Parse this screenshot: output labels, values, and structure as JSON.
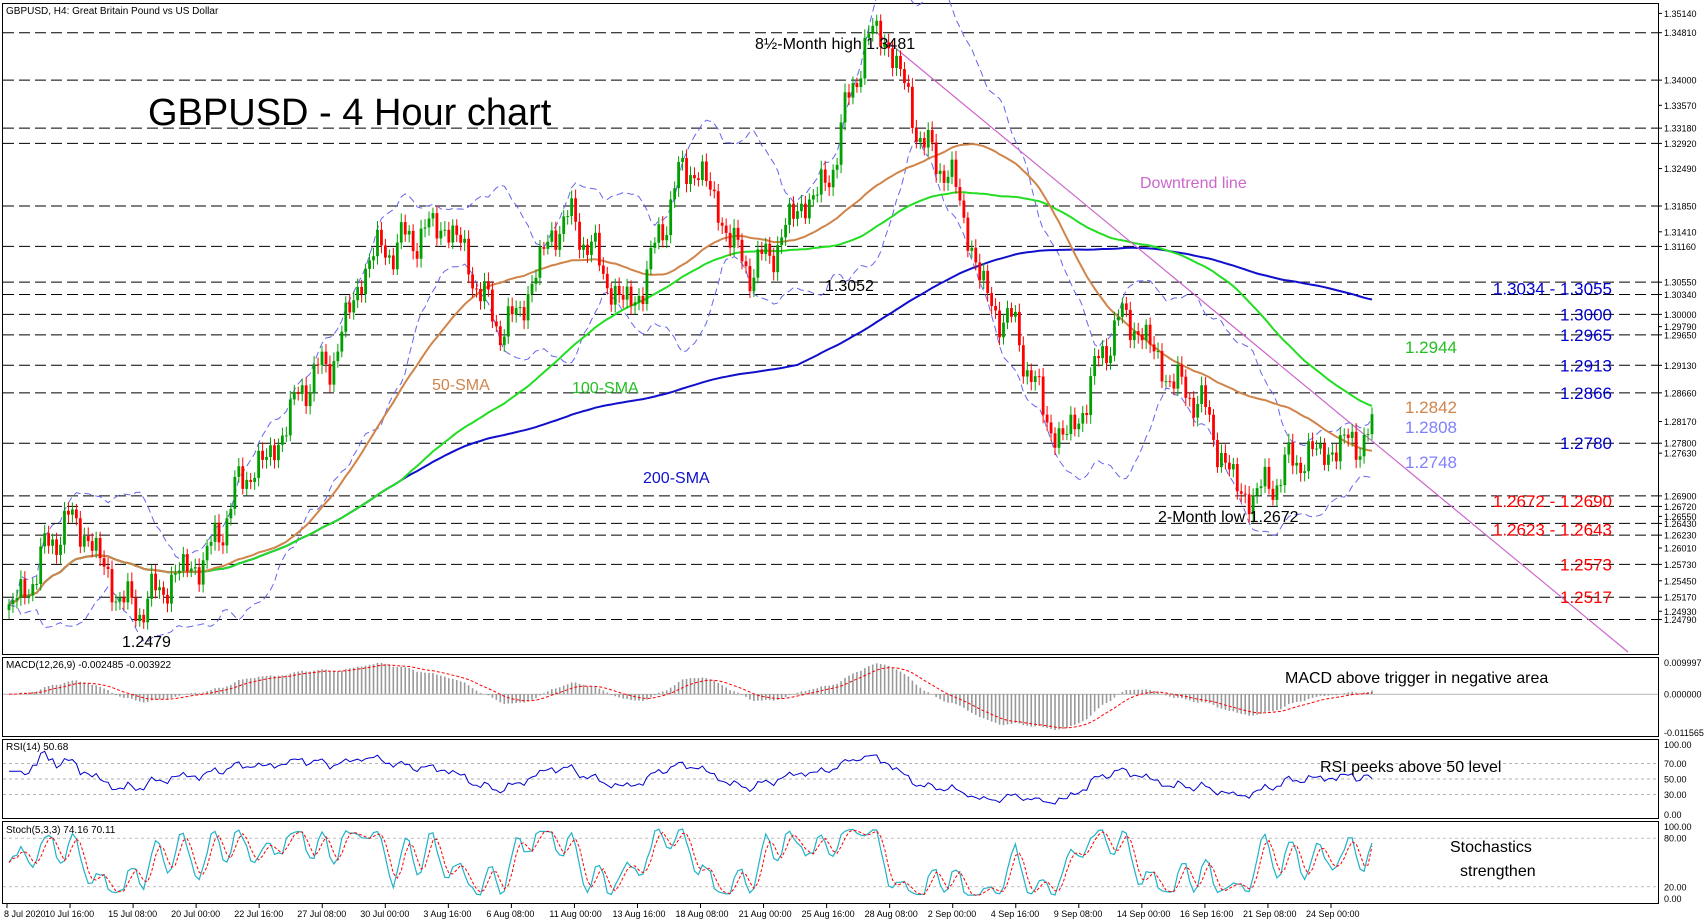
{
  "chart_data": [
    {
      "type": "candlestick",
      "header": "GBPUSD, H4:  Great Britain Pound vs US Dollar",
      "title": "GBPUSD - 4 Hour chart",
      "ylim": [
        1.242,
        1.353
      ],
      "y_ticks": [
        "1.35140",
        "1.34810",
        "1.34000",
        "1.33570",
        "1.33180",
        "1.32920",
        "1.32490",
        "1.31850",
        "1.31410",
        "1.31160",
        "1.30550",
        "1.30340",
        "1.30000",
        "1.29790",
        "1.29650",
        "1.29130",
        "1.28660",
        "1.28170",
        "1.27800",
        "1.27630",
        "1.26900",
        "1.26720",
        "1.26550",
        "1.26430",
        "1.26230",
        "1.26010",
        "1.25730",
        "1.25450",
        "1.25170",
        "1.24930",
        "1.24790"
      ],
      "x_ticks": [
        "8 Jul 2020",
        "10 Jul 16:00",
        "15 Jul 08:00",
        "20 Jul 00:00",
        "22 Jul 16:00",
        "27 Jul 08:00",
        "30 Jul 00:00",
        "3 Aug 16:00",
        "6 Aug 08:00",
        "11 Aug 00:00",
        "13 Aug 16:00",
        "18 Aug 08:00",
        "21 Aug 00:00",
        "25 Aug 16:00",
        "28 Aug 08:00",
        "2 Sep 00:00",
        "4 Sep 16:00",
        "9 Sep 08:00",
        "14 Sep 00:00",
        "16 Sep 16:00",
        "21 Sep 08:00",
        "24 Sep 00:00"
      ],
      "price_anchors": [
        1.2505,
        1.2645,
        1.25,
        1.257,
        1.274,
        1.29,
        1.311,
        1.315,
        1.298,
        1.316,
        1.302,
        1.325,
        1.308,
        1.32,
        1.3481,
        1.326,
        1.3,
        1.279,
        1.299,
        1.287,
        1.269,
        1.276,
        1.279
      ],
      "horizontal_levels": [
        1.3481,
        1.34,
        1.3318,
        1.3292,
        1.3185,
        1.3116,
        1.3055,
        1.3034,
        1.3,
        1.2965,
        1.2913,
        1.2866,
        1.278,
        1.269,
        1.2672,
        1.2643,
        1.2623,
        1.2573,
        1.2517,
        1.2479
      ],
      "right_labels": [
        {
          "text": "1.3034 - 1.3055",
          "value": 1.30445,
          "color": "#0000cc"
        },
        {
          "text": "1.3000",
          "value": 1.3,
          "color": "#0000cc"
        },
        {
          "text": "1.2965",
          "value": 1.2965,
          "color": "#0000cc"
        },
        {
          "text": "1.2944",
          "value": 1.2944,
          "color": "#22c022"
        },
        {
          "text": "1.2913",
          "value": 1.2913,
          "color": "#0000cc"
        },
        {
          "text": "1.2866",
          "value": 1.2866,
          "color": "#0000cc"
        },
        {
          "text": "1.2842",
          "value": 1.2842,
          "color": "#d0844a"
        },
        {
          "text": "1.2808",
          "value": 1.2808,
          "color": "#8080ff"
        },
        {
          "text": "1.2780",
          "value": 1.278,
          "color": "#0000cc"
        },
        {
          "text": "1.2748",
          "value": 1.2748,
          "color": "#8080ff"
        },
        {
          "text": "1.2672 - 1.2690",
          "value": 1.2681,
          "color": "#ff0000"
        },
        {
          "text": "1.2623 - 1.2643",
          "value": 1.2633,
          "color": "#ff0000"
        },
        {
          "text": "1.2573",
          "value": 1.2573,
          "color": "#ff0000"
        },
        {
          "text": "1.2517",
          "value": 1.2517,
          "color": "#ff0000"
        }
      ],
      "annotations": [
        "8½-Month high 1.3481",
        "1.3052",
        "2-Month low 1.2672",
        "1.2479",
        "Downtrend line"
      ],
      "series_labels": [
        "50-SMA",
        "100-SMA",
        "200-SMA"
      ],
      "colors": {
        "bull": "#00a000",
        "bear": "#ff0000",
        "sma50": "#d0844a",
        "sma100": "#22dd22",
        "sma200": "#1010cc",
        "bollinger": "#6666ee",
        "downtrend": "#cc66cc"
      }
    },
    {
      "type": "histogram",
      "header": "MACD(12,26,9) -0.002485 -0.003922",
      "y_ticks": [
        "0.009997",
        "0.000000",
        "-0.011565"
      ],
      "ylim": [
        -0.011565,
        0.009997
      ],
      "annotation": "MACD above trigger in negative area"
    },
    {
      "type": "line",
      "header": "RSI(14) 50.68",
      "y_ticks": [
        "100.00",
        "70.00",
        "50.00",
        "30.00",
        "0.00"
      ],
      "ylim": [
        0,
        100
      ],
      "annotation": "RSI peeks above 50 level",
      "last_value": 50.68
    },
    {
      "type": "line",
      "header": "Stoch(5,3,3) 74.16 70.11",
      "y_ticks": [
        "100.00",
        "80.00",
        "20.00",
        "0.00"
      ],
      "ylim": [
        0,
        100
      ],
      "annotation_lines": [
        "Stochastics",
        "strengthen"
      ],
      "last_values": [
        74.16,
        70.11
      ]
    }
  ]
}
